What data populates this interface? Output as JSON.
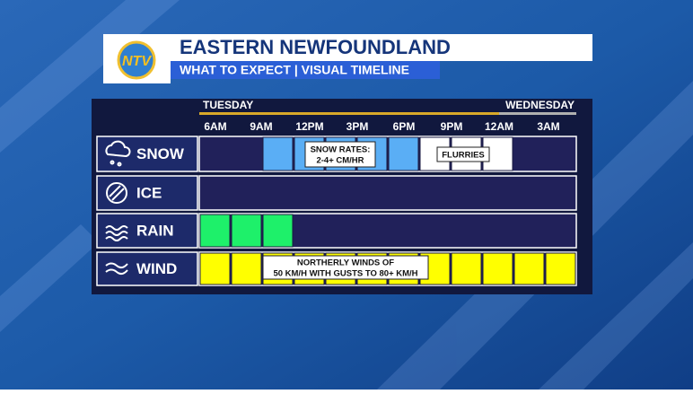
{
  "header": {
    "logo": "NTV",
    "title": "EASTERN NEWFOUNDLAND",
    "subtitle": "WHAT TO EXPECT | VISUAL TIMELINE"
  },
  "timeline": {
    "days": [
      "TUESDAY",
      "WEDNESDAY"
    ],
    "times": [
      "6AM",
      "9AM",
      "12PM",
      "3PM",
      "6PM",
      "9PM",
      "12AM",
      "3AM"
    ],
    "rows": [
      {
        "name": "SNOW",
        "cells": [
          null,
          null,
          "#5aaef5",
          "#5aaef5",
          "#5aaef5",
          "#5aaef5",
          "#5aaef5",
          "#ffffff",
          "#ffffff",
          "#ffffff",
          null,
          null
        ],
        "notes": [
          [
            "SNOW RATES:",
            "2-4+ CM/HR"
          ],
          [
            "FLURRIES"
          ]
        ]
      },
      {
        "name": "ICE",
        "cells": [
          null,
          null,
          null,
          null,
          null,
          null,
          null,
          null,
          null,
          null,
          null,
          null
        ],
        "notes": []
      },
      {
        "name": "RAIN",
        "cells": [
          "#1ef06a",
          "#1ef06a",
          "#1ef06a",
          null,
          null,
          null,
          null,
          null,
          null,
          null,
          null,
          null
        ],
        "notes": []
      },
      {
        "name": "WIND",
        "cells": [
          "#ffff00",
          "#ffff00",
          "#ffff00",
          "#ffff00",
          "#ffff00",
          "#ffff00",
          "#ffff00",
          "#ffff00",
          "#ffff00",
          "#ffff00",
          "#ffff00",
          "#ffff00"
        ],
        "notes": [
          [
            "NORTHERLY WINDS OF",
            "50 KM/H WITH GUSTS TO 80+ KM/H"
          ]
        ]
      }
    ]
  }
}
